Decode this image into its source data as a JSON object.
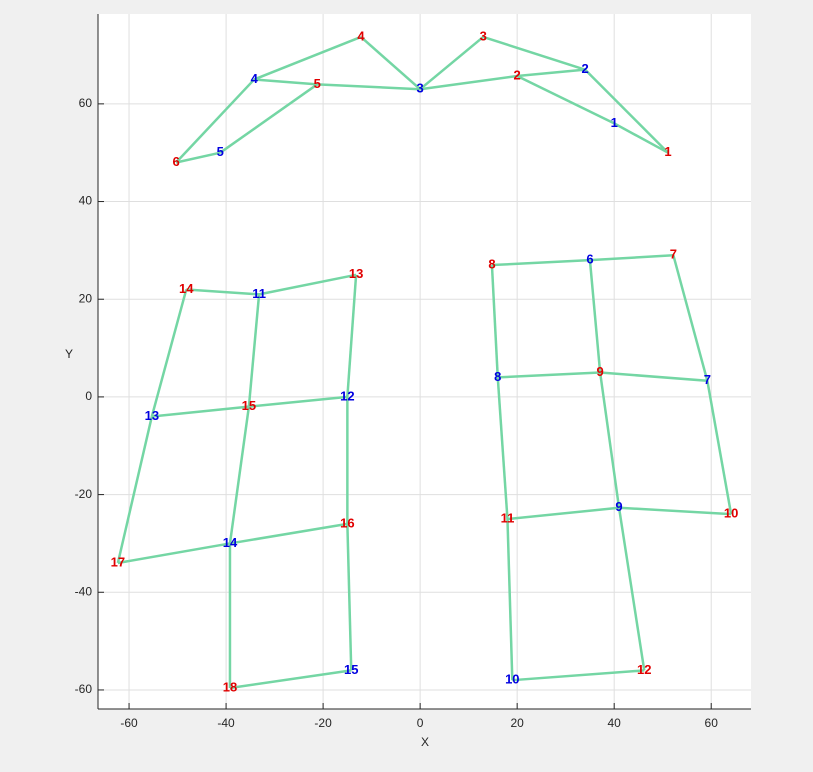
{
  "chart_data": {
    "type": "graph",
    "xlabel": "X",
    "ylabel": "Y",
    "xlim": [
      -66.4,
      68.2
    ],
    "ylim": [
      -63.9,
      78.4
    ],
    "xticks": [
      -60,
      -40,
      -20,
      0,
      20,
      40,
      60
    ],
    "yticks": [
      -60,
      -40,
      -20,
      0,
      20,
      40,
      60
    ],
    "grid": true,
    "edge_color": "#74d6a4",
    "points": [
      {
        "label": "1",
        "x": 51.1,
        "y": 50,
        "color": "#e00000"
      },
      {
        "label": "1",
        "x": 40,
        "y": 56,
        "color": "#0000e0"
      },
      {
        "label": "2",
        "x": 20,
        "y": 65.7,
        "color": "#e00000"
      },
      {
        "label": "2",
        "x": 34,
        "y": 67,
        "color": "#0000e0"
      },
      {
        "label": "3",
        "x": 0,
        "y": 63,
        "color": "#0000e0"
      },
      {
        "label": "3",
        "x": 13,
        "y": 73.7,
        "color": "#e00000"
      },
      {
        "label": "4",
        "x": -12.2,
        "y": 73.7,
        "color": "#e00000"
      },
      {
        "label": "4",
        "x": -34.2,
        "y": 65,
        "color": "#0000e0"
      },
      {
        "label": "5",
        "x": -21.2,
        "y": 64,
        "color": "#e00000"
      },
      {
        "label": "5",
        "x": -41.2,
        "y": 50,
        "color": "#0000e0"
      },
      {
        "label": "6",
        "x": -50.3,
        "y": 48,
        "color": "#e00000"
      },
      {
        "label": "14",
        "x": -48.2,
        "y": 22,
        "color": "#e00000"
      },
      {
        "label": "11",
        "x": -33.2,
        "y": 21,
        "color": "#0000e0"
      },
      {
        "label": "13",
        "x": -13.2,
        "y": 25,
        "color": "#e00000"
      },
      {
        "label": "13",
        "x": -55.3,
        "y": -4,
        "color": "#0000e0"
      },
      {
        "label": "15",
        "x": -35.3,
        "y": -2,
        "color": "#e00000"
      },
      {
        "label": "12",
        "x": -15,
        "y": 0,
        "color": "#0000e0"
      },
      {
        "label": "17",
        "x": -62.3,
        "y": -34,
        "color": "#e00000"
      },
      {
        "label": "14",
        "x": -39.2,
        "y": -30,
        "color": "#0000e0"
      },
      {
        "label": "16",
        "x": -15,
        "y": -26,
        "color": "#e00000"
      },
      {
        "label": "18",
        "x": -39.2,
        "y": -59.6,
        "color": "#e00000"
      },
      {
        "label": "15",
        "x": -14.2,
        "y": -56,
        "color": "#0000e0"
      },
      {
        "label": "8",
        "x": 14.8,
        "y": 27,
        "color": "#e00000"
      },
      {
        "label": "6",
        "x": 35,
        "y": 28,
        "color": "#0000e0"
      },
      {
        "label": "7",
        "x": 52.2,
        "y": 29,
        "color": "#e00000"
      },
      {
        "label": "8",
        "x": 16,
        "y": 4,
        "color": "#0000e0"
      },
      {
        "label": "9",
        "x": 37.1,
        "y": 5,
        "color": "#e00000"
      },
      {
        "label": "7",
        "x": 59.2,
        "y": 3.3,
        "color": "#0000e0"
      },
      {
        "label": "11",
        "x": 18,
        "y": -25,
        "color": "#e00000"
      },
      {
        "label": "9",
        "x": 41,
        "y": -22.7,
        "color": "#0000e0"
      },
      {
        "label": "10",
        "x": 64.1,
        "y": -24,
        "color": "#e00000"
      },
      {
        "label": "10",
        "x": 19,
        "y": -58,
        "color": "#0000e0"
      },
      {
        "label": "12",
        "x": 46.2,
        "y": -56,
        "color": "#e00000"
      }
    ],
    "edges": [
      [
        0,
        1
      ],
      [
        1,
        2
      ],
      [
        0,
        3
      ],
      [
        2,
        3
      ],
      [
        3,
        5
      ],
      [
        5,
        4
      ],
      [
        2,
        4
      ],
      [
        4,
        6
      ],
      [
        4,
        8
      ],
      [
        8,
        7
      ],
      [
        6,
        7
      ],
      [
        7,
        10
      ],
      [
        10,
        9
      ],
      [
        9,
        8
      ],
      [
        11,
        12
      ],
      [
        12,
        13
      ],
      [
        11,
        14
      ],
      [
        14,
        17
      ],
      [
        12,
        15
      ],
      [
        15,
        18
      ],
      [
        13,
        16
      ],
      [
        16,
        19
      ],
      [
        14,
        15
      ],
      [
        15,
        16
      ],
      [
        17,
        18
      ],
      [
        18,
        19
      ],
      [
        18,
        20
      ],
      [
        19,
        21
      ],
      [
        20,
        21
      ],
      [
        22,
        23
      ],
      [
        23,
        24
      ],
      [
        22,
        25
      ],
      [
        23,
        26
      ],
      [
        24,
        27
      ],
      [
        25,
        26
      ],
      [
        26,
        27
      ],
      [
        25,
        28
      ],
      [
        26,
        29
      ],
      [
        27,
        30
      ],
      [
        28,
        29
      ],
      [
        29,
        30
      ],
      [
        28,
        31
      ],
      [
        29,
        32
      ],
      [
        31,
        32
      ]
    ]
  }
}
